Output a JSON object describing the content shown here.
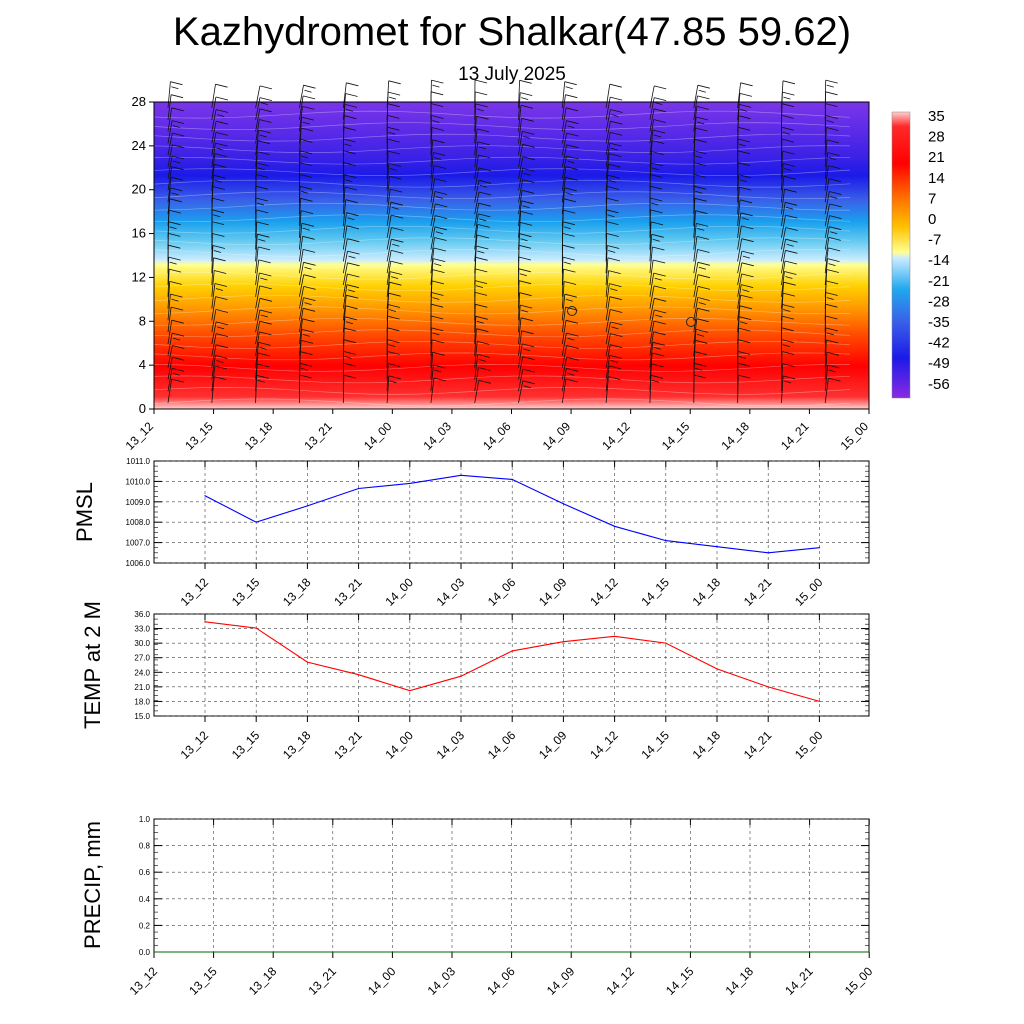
{
  "title": "Kazhydromet for Shalkar(47.85 59.62)",
  "subtitle": "13 July 2025",
  "time_labels": [
    "13_12",
    "13_15",
    "13_18",
    "13_21",
    "14_00",
    "14_03",
    "14_06",
    "14_09",
    "14_12",
    "14_15",
    "14_18",
    "14_21",
    "15_00"
  ],
  "chart_data": [
    {
      "type": "heatmap",
      "title": "",
      "ylabel": "",
      "ylim": [
        0,
        28
      ],
      "yticks": [
        "0",
        "4",
        "8",
        "12",
        "16",
        "20",
        "24",
        "28"
      ],
      "colorbar": {
        "labels": [
          "35",
          "28",
          "21",
          "14",
          "7",
          "0",
          "-7",
          "-14",
          "-21",
          "-28",
          "-35",
          "-42",
          "-49",
          "-56"
        ],
        "range": [
          -63,
          42
        ]
      },
      "colors": {
        "hot": "#ff0000",
        "mid": "#ffff99",
        "cold": "#2200ee",
        "top": "#8a2be2"
      },
      "freeze_level": 13.5,
      "note_marks": [
        "calm-circle",
        "calm-circle"
      ]
    },
    {
      "type": "line",
      "ylabel": "PMSL",
      "ylim": [
        1006.0,
        1011.0
      ],
      "yticks": [
        "1006.0",
        "1007.0",
        "1008.0",
        "1009.0",
        "1010.0",
        "1011.0"
      ],
      "color": "#0000ff",
      "grid": true,
      "series": [
        {
          "values": [
            1009.3,
            1008.0,
            1008.8,
            1009.65,
            1009.9,
            1010.3,
            1010.1,
            1008.9,
            1007.8,
            1007.1,
            1006.8,
            1006.5,
            1006.75
          ]
        }
      ]
    },
    {
      "type": "line",
      "ylabel": "TEMP at 2 M",
      "ylim": [
        15.0,
        36.0
      ],
      "yticks": [
        "15.0",
        "18.0",
        "21.0",
        "24.0",
        "27.0",
        "30.0",
        "33.0",
        "36.0"
      ],
      "color": "#ff0000",
      "grid": true,
      "series": [
        {
          "values": [
            34.4,
            33.1,
            26.1,
            23.5,
            20.2,
            23.2,
            28.4,
            30.3,
            31.4,
            30.0,
            24.7,
            21.0,
            18.0
          ]
        }
      ]
    },
    {
      "type": "line",
      "ylabel": "PRECIP, mm",
      "ylim": [
        0.0,
        1.0
      ],
      "yticks": [
        "0.0",
        "0.2",
        "0.4",
        "0.6",
        "0.8",
        "1.0"
      ],
      "color": "#006400",
      "grid": true,
      "series": [
        {
          "values": [
            0,
            0,
            0,
            0,
            0,
            0,
            0,
            0,
            0,
            0,
            0,
            0,
            0
          ]
        }
      ]
    }
  ]
}
